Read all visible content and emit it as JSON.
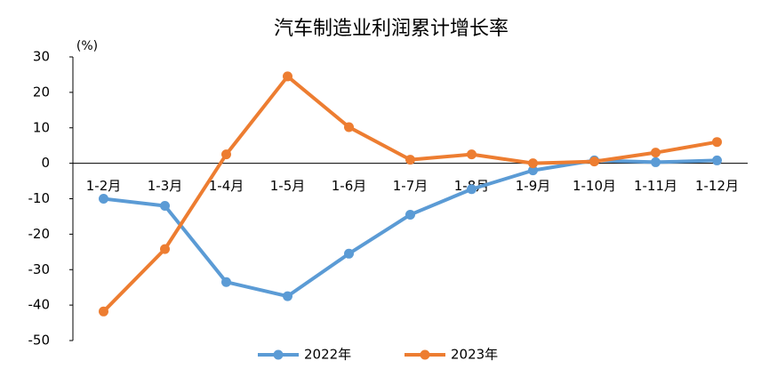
{
  "chart_data": {
    "type": "line",
    "title": "汽车制造业利润累计增长率",
    "y_unit": "(%)",
    "categories": [
      "1-2月",
      "1-3月",
      "1-4月",
      "1-5月",
      "1-6月",
      "1-7月",
      "1-8月",
      "1-9月",
      "1-10月",
      "1-11月",
      "1-12月"
    ],
    "series": [
      {
        "name": "2022年",
        "color": "#5b9bd5",
        "values": [
          -10,
          -12,
          -33.5,
          -37.5,
          -25.5,
          -14.5,
          -7.3,
          -2,
          0.8,
          0.3,
          0.8
        ]
      },
      {
        "name": "2023年",
        "color": "#ed7d31",
        "values": [
          -41.8,
          -24.2,
          2.5,
          24.5,
          10.2,
          1,
          2.5,
          0,
          0.5,
          3,
          6
        ]
      }
    ],
    "ylim": [
      -50,
      30
    ],
    "yticks": [
      -50,
      -40,
      -30,
      -20,
      -10,
      0,
      10,
      20,
      30
    ],
    "negative_tick_color": "#ff0000",
    "legend": "bottom"
  }
}
